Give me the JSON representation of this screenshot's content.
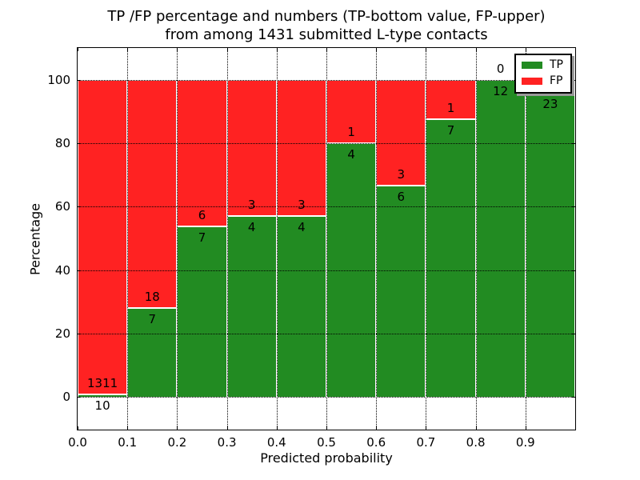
{
  "chart_data": {
    "type": "bar",
    "stacked": true,
    "normalized": "percent of bin total (TP+FP)",
    "title": "TP /FP percentage and numbers (TP-bottom value, FP-upper)",
    "subtitle": "from among 1431 submitted L-type contacts",
    "xlabel": "Predicted probability",
    "ylabel": "Percentage",
    "total_contacts": 1431,
    "x_tick_labels": [
      "0.0",
      "0.1",
      "0.2",
      "0.3",
      "0.4",
      "0.5",
      "0.6",
      "0.7",
      "0.8",
      "0.9"
    ],
    "y_tick_labels": [
      "0",
      "20",
      "40",
      "60",
      "80",
      "100"
    ],
    "y_tick_values": [
      0,
      20,
      40,
      60,
      80,
      100
    ],
    "xlim": [
      0.0,
      1.0
    ],
    "ylim_shown_percent": [
      0,
      100
    ],
    "grid": true,
    "categories": [
      "0.0-0.1",
      "0.1-0.2",
      "0.2-0.3",
      "0.3-0.4",
      "0.4-0.5",
      "0.5-0.6",
      "0.6-0.7",
      "0.7-0.8",
      "0.8-0.9",
      "0.9-1.0"
    ],
    "series": [
      {
        "name": "TP",
        "color": "#228B22",
        "counts": [
          10,
          7,
          7,
          4,
          4,
          4,
          6,
          7,
          12,
          23
        ]
      },
      {
        "name": "FP",
        "color": "#FF2222",
        "counts": [
          1311,
          18,
          6,
          3,
          3,
          1,
          3,
          1,
          0,
          1
        ]
      }
    ],
    "tp_percent": [
      0.76,
      28.0,
      53.85,
      57.14,
      57.14,
      80.0,
      66.67,
      87.5,
      100.0,
      95.83
    ],
    "bar_count_labels": {
      "tp": [
        "10",
        "7",
        "7",
        "4",
        "4",
        "4",
        "6",
        "7",
        "12",
        "23"
      ],
      "fp": [
        "1311",
        "18",
        "6",
        "3",
        "3",
        "1",
        "3",
        "1",
        "0",
        ""
      ]
    },
    "legend": {
      "position": "upper right",
      "entries": [
        {
          "label": "TP",
          "color": "#228B22"
        },
        {
          "label": "FP",
          "color": "#FF2222"
        }
      ]
    }
  }
}
